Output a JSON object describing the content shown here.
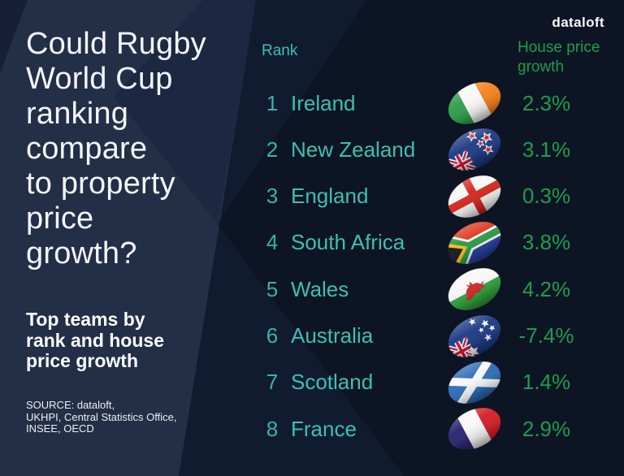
{
  "brand": "dataloft",
  "left_panel": {
    "title": "Could Rugby\nWorld Cup\nranking\ncompare\nto property\nprice\ngrowth?",
    "subtitle": "Top teams by\nrank and house\nprice growth",
    "source": "SOURCE: dataloft,\nUKHPI, Central Statistics Office,\nINSEE, OECD"
  },
  "table": {
    "rank_header": "Rank",
    "growth_header": "House price\ngrowth",
    "rows": [
      {
        "rank": "1",
        "country": "Ireland",
        "flag": "ireland",
        "growth": "2.3%"
      },
      {
        "rank": "2",
        "country": "New Zealand",
        "flag": "newzealand",
        "growth": "3.1%"
      },
      {
        "rank": "3",
        "country": "England",
        "flag": "england",
        "growth": "0.3%"
      },
      {
        "rank": "4",
        "country": "South Africa",
        "flag": "southafrica",
        "growth": "3.8%"
      },
      {
        "rank": "5",
        "country": "Wales",
        "flag": "wales",
        "growth": "4.2%"
      },
      {
        "rank": "6",
        "country": "Australia",
        "flag": "australia",
        "growth": "-7.4%"
      },
      {
        "rank": "7",
        "country": "Scotland",
        "flag": "scotland",
        "growth": "1.4%"
      },
      {
        "rank": "8",
        "country": "France",
        "flag": "france",
        "growth": "2.9%"
      }
    ]
  },
  "colors": {
    "base": "#0d1424",
    "panel": "#232e47",
    "panel-dark": "#1c2741",
    "corner-dark": "#161f35",
    "wedge": "#111b2f",
    "teal": "#3cc0b2",
    "green": "#1d9e4b",
    "white": "#f3f5f8"
  },
  "chart_data": {
    "type": "table",
    "title": "Could Rugby World Cup ranking compare to property price growth?",
    "subtitle": "Top teams by rank and house price growth",
    "columns": [
      "Rank",
      "Country",
      "House price growth"
    ],
    "rows": [
      [
        1,
        "Ireland",
        2.3
      ],
      [
        2,
        "New Zealand",
        3.1
      ],
      [
        3,
        "England",
        0.3
      ],
      [
        4,
        "South Africa",
        3.8
      ],
      [
        5,
        "Wales",
        4.2
      ],
      [
        6,
        "Australia",
        -7.4
      ],
      [
        7,
        "Scotland",
        1.4
      ],
      [
        8,
        "France",
        2.9
      ]
    ],
    "units": "percent",
    "source": "SOURCE: dataloft, UKHPI, Central Statistics Office, INSEE, OECD",
    "legend_position": "none",
    "grid": false
  }
}
